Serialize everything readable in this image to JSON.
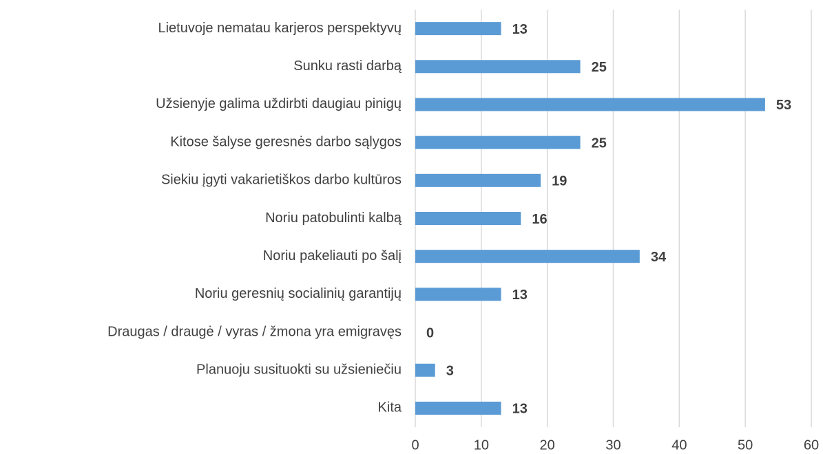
{
  "chart_data": {
    "type": "bar",
    "orientation": "horizontal",
    "categories": [
      "Lietuvoje nematau karjeros perspektyvų",
      "Sunku rasti darbą",
      "Užsienyje galima uždirbti daugiau pinigų",
      "Kitose šalyse geresnės darbo sąlygos",
      "Siekiu įgyti vakarietiškos darbo kultūros",
      "Noriu patobulinti kalbą",
      "Noriu pakeliauti po šalį",
      "Noriu geresnių socialinių garantijų",
      "Draugas / draugė / vyras / žmona yra emigravęs",
      "Planuoju susituokti su užsieniečiu",
      "Kita"
    ],
    "values": [
      13,
      25,
      53,
      25,
      19,
      16,
      34,
      13,
      0,
      3,
      13
    ],
    "color": "#5b9bd5",
    "xlim": [
      0,
      60
    ],
    "xticks": [
      0,
      10,
      20,
      30,
      40,
      50,
      60
    ],
    "grid": true
  }
}
